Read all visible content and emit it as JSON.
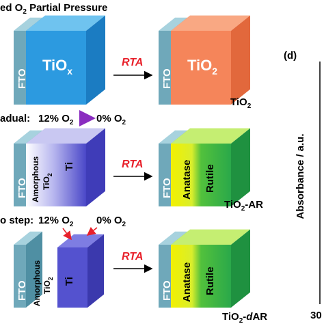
{
  "rows": [
    {
      "title": [
        "ed O",
        "2",
        " Partial Pressure"
      ],
      "fto": "FTO",
      "film": [
        "TiO",
        "x"
      ],
      "rta": "RTA",
      "product_fto": "FTO",
      "product_film": [
        "TiO",
        "2"
      ],
      "label": [
        "TiO",
        "2"
      ]
    },
    {
      "title": "adual:",
      "from": [
        "12% O",
        "2"
      ],
      "to": [
        "0% O",
        "2"
      ],
      "fto": "FTO",
      "amorphous": [
        "Amorphous",
        "TiO",
        "2"
      ],
      "ti": "Ti",
      "rta": "RTA",
      "product_fto": "FTO",
      "anatase": "Anatase",
      "rutile": "Rutile",
      "label": [
        "TiO",
        "2",
        "-AR"
      ]
    },
    {
      "title": "o step:",
      "from": [
        "12% O",
        "2"
      ],
      "to": [
        "0% O",
        "2"
      ],
      "fto": "FTO",
      "amorphous": [
        "Amorphous",
        "TiO",
        "2"
      ],
      "ti": "Ti",
      "rta": "RTA",
      "product_fto": "FTO",
      "anatase": "Anatase",
      "rutile": "Rutile",
      "label": [
        "TiO",
        "2",
        "-",
        "d",
        "AR"
      ]
    }
  ],
  "panel_d": {
    "tag": "(d)",
    "y_axis": "Absorbance / a.u.",
    "x_tick": "30"
  }
}
